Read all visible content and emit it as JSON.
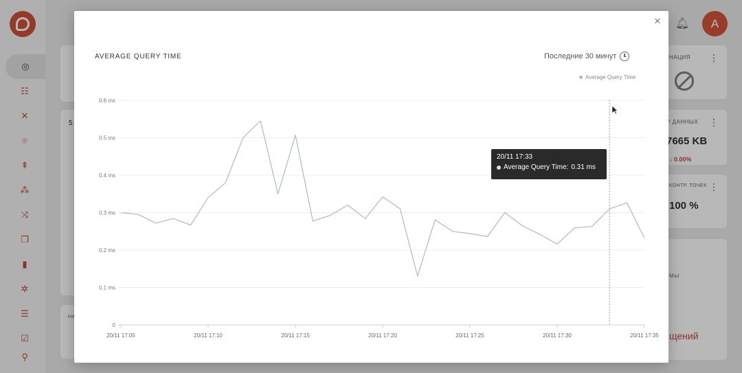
{
  "background": {
    "nav_icons": [
      "radar-icon",
      "sliders-icon",
      "tools-icon",
      "scan-icon",
      "tree-icon",
      "users-icon",
      "shuffle-icon",
      "folders-icon",
      "bar-chart-icon",
      "gear-icon",
      "server-icon",
      "checklist-icon",
      "pin-icon"
    ],
    "user_initial": "A",
    "cards": {
      "replication_title": "НАЦИЯ",
      "data_title": "Р ДАННЫХ",
      "data_value": "7665 KB",
      "data_delta": "↓ 0.00%",
      "checkpoint_title": "КОНТР. ТОЧЕК",
      "checkpoint_value": "100 %",
      "left_number": "5",
      "left_small": "НА",
      "right_gray": "мы",
      "right_red": "щений"
    },
    "accent_color": "#c8442c"
  },
  "modal": {
    "title": "AVERAGE QUERY TIME",
    "period": "Последние 30 минут",
    "close_label": "×",
    "legend": "Average Query Time",
    "tooltip": {
      "time": "20/11 17:33",
      "series": "Average Query Time:",
      "value": "0.31 ms"
    }
  },
  "chart_data": {
    "type": "line",
    "series": [
      {
        "name": "Average Query Time",
        "color": "#a9bcbc",
        "x": [
          "17:05",
          "17:06",
          "17:07",
          "17:08",
          "17:09",
          "17:10",
          "17:11",
          "17:12",
          "17:13",
          "17:14",
          "17:15",
          "17:16",
          "17:17",
          "17:18",
          "17:19",
          "17:20",
          "17:21",
          "17:22",
          "17:23",
          "17:24",
          "17:25",
          "17:26",
          "17:27",
          "17:28",
          "17:29",
          "17:30",
          "17:31",
          "17:32",
          "17:33",
          "17:34",
          "17:35"
        ],
        "values": [
          0.3,
          0.295,
          0.272,
          0.284,
          0.267,
          0.34,
          0.38,
          0.5,
          0.545,
          0.35,
          0.507,
          0.277,
          0.293,
          0.32,
          0.284,
          0.342,
          0.31,
          0.13,
          0.281,
          0.25,
          0.244,
          0.236,
          0.3,
          0.265,
          0.242,
          0.216,
          0.259,
          0.263,
          0.31,
          0.326,
          0.232
        ]
      }
    ],
    "x_ticks": [
      "20/11 17:05",
      "20/11 17:10",
      "20/11 17:15",
      "20/11 17:20",
      "20/11 17:25",
      "20/11 17:30",
      "20/11 17:35"
    ],
    "y_ticks": [
      "0",
      "0.1 ms",
      "0.2 ms",
      "0.3 ms",
      "0.4 ms",
      "0.5 ms",
      "0.6 ms"
    ],
    "ylim": [
      0,
      0.6
    ],
    "hover_x": "17:33",
    "grid": true,
    "legend_position": "top-right"
  }
}
